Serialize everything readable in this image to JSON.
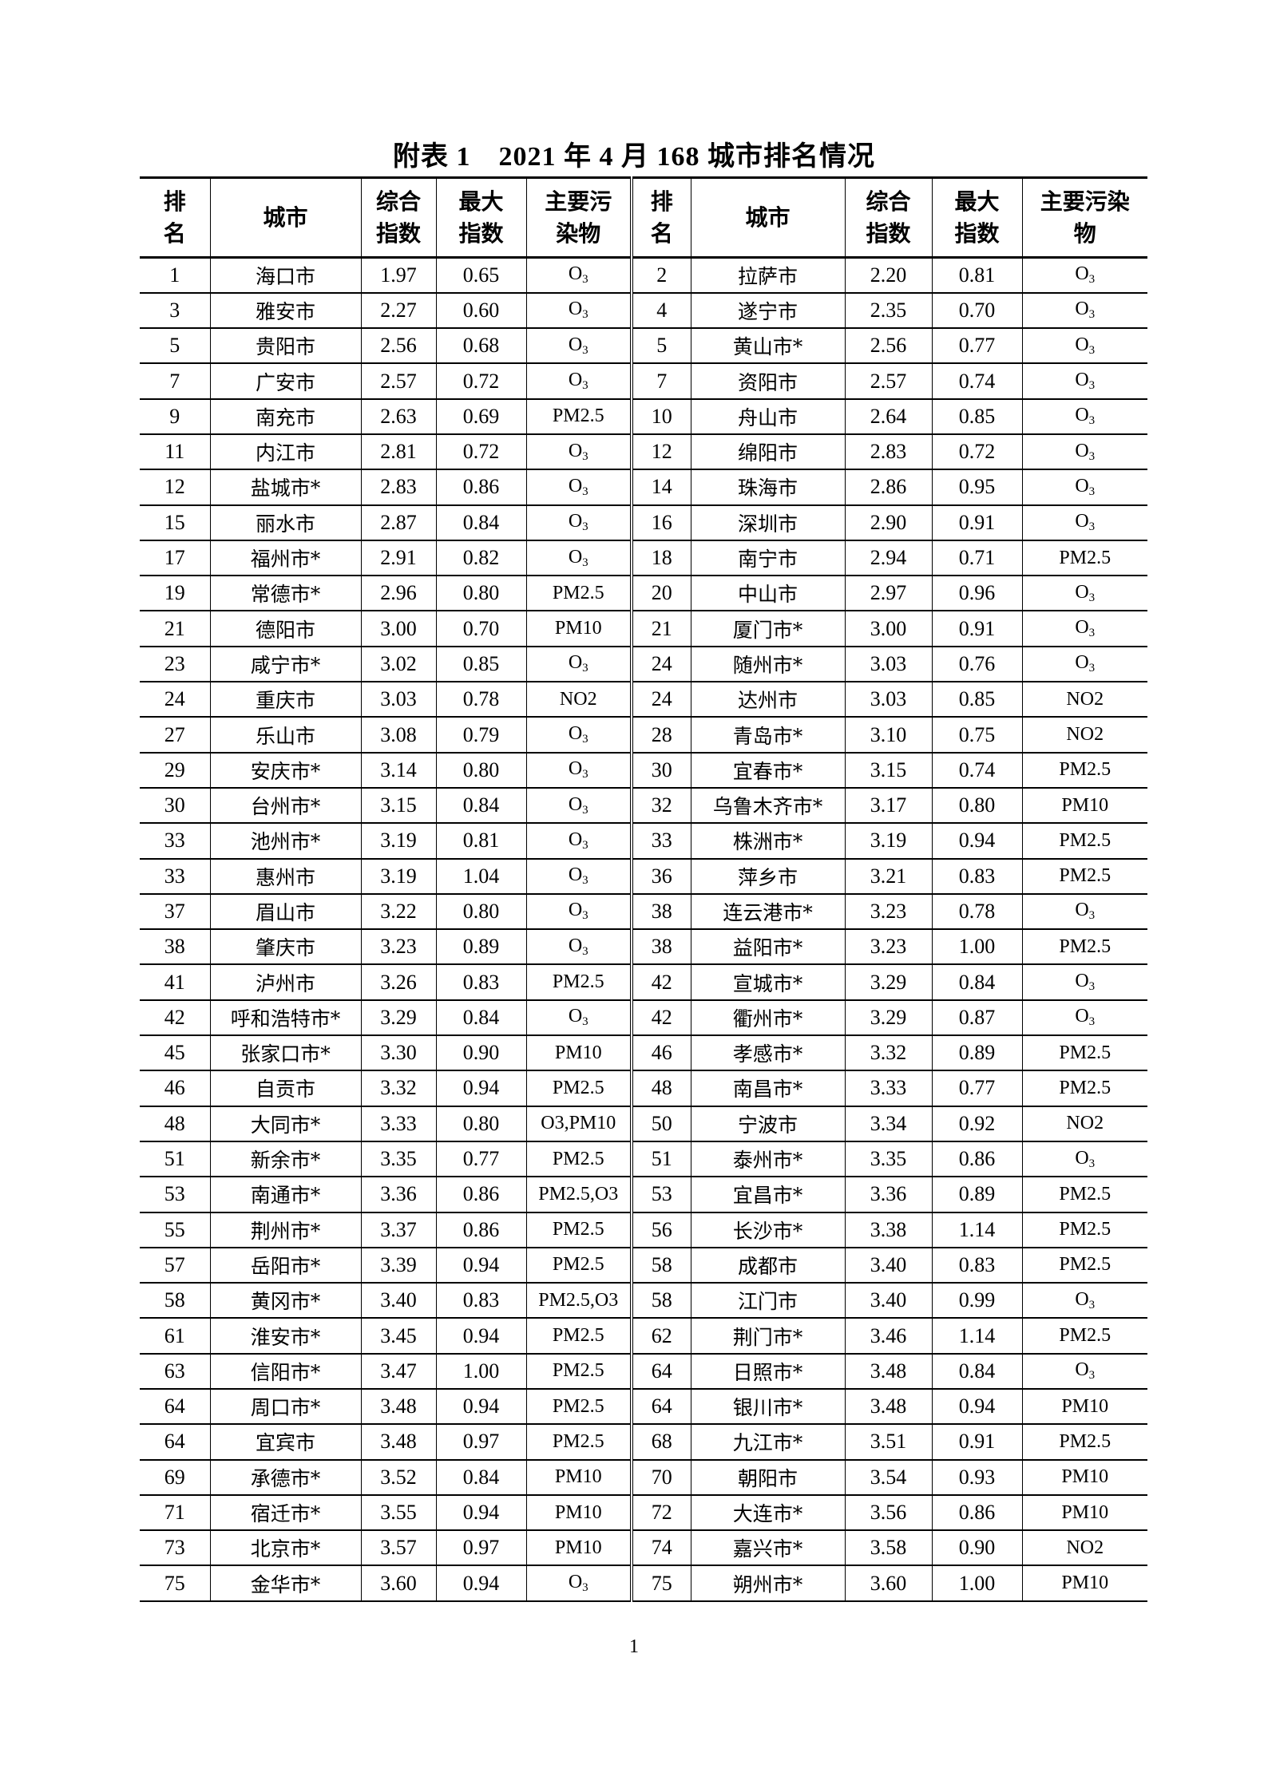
{
  "title": "附表 1　2021 年 4 月 168 城市排名情况",
  "headers": [
    "排\n名",
    "城市",
    "综合\n指数",
    "最大\n指数",
    "主要污\n染物",
    "排\n名",
    "城市",
    "综合\n指数",
    "最大\n指数",
    "主要污染\n物"
  ],
  "rows": [
    [
      [
        "1",
        "海口市",
        "1.97",
        "0.65",
        "O3"
      ],
      [
        "2",
        "拉萨市",
        "2.20",
        "0.81",
        "O3"
      ]
    ],
    [
      [
        "3",
        "雅安市",
        "2.27",
        "0.60",
        "O3"
      ],
      [
        "4",
        "遂宁市",
        "2.35",
        "0.70",
        "O3"
      ]
    ],
    [
      [
        "5",
        "贵阳市",
        "2.56",
        "0.68",
        "O3"
      ],
      [
        "5",
        "黄山市*",
        "2.56",
        "0.77",
        "O3"
      ]
    ],
    [
      [
        "7",
        "广安市",
        "2.57",
        "0.72",
        "O3"
      ],
      [
        "7",
        "资阳市",
        "2.57",
        "0.74",
        "O3"
      ]
    ],
    [
      [
        "9",
        "南充市",
        "2.63",
        "0.69",
        "PM2.5"
      ],
      [
        "10",
        "舟山市",
        "2.64",
        "0.85",
        "O3"
      ]
    ],
    [
      [
        "11",
        "内江市",
        "2.81",
        "0.72",
        "O3"
      ],
      [
        "12",
        "绵阳市",
        "2.83",
        "0.72",
        "O3"
      ]
    ],
    [
      [
        "12",
        "盐城市*",
        "2.83",
        "0.86",
        "O3"
      ],
      [
        "14",
        "珠海市",
        "2.86",
        "0.95",
        "O3"
      ]
    ],
    [
      [
        "15",
        "丽水市",
        "2.87",
        "0.84",
        "O3"
      ],
      [
        "16",
        "深圳市",
        "2.90",
        "0.91",
        "O3"
      ]
    ],
    [
      [
        "17",
        "福州市*",
        "2.91",
        "0.82",
        "O3"
      ],
      [
        "18",
        "南宁市",
        "2.94",
        "0.71",
        "PM2.5"
      ]
    ],
    [
      [
        "19",
        "常德市*",
        "2.96",
        "0.80",
        "PM2.5"
      ],
      [
        "20",
        "中山市",
        "2.97",
        "0.96",
        "O3"
      ]
    ],
    [
      [
        "21",
        "德阳市",
        "3.00",
        "0.70",
        "PM10"
      ],
      [
        "21",
        "厦门市*",
        "3.00",
        "0.91",
        "O3"
      ]
    ],
    [
      [
        "23",
        "咸宁市*",
        "3.02",
        "0.85",
        "O3"
      ],
      [
        "24",
        "随州市*",
        "3.03",
        "0.76",
        "O3"
      ]
    ],
    [
      [
        "24",
        "重庆市",
        "3.03",
        "0.78",
        "NO2"
      ],
      [
        "24",
        "达州市",
        "3.03",
        "0.85",
        "NO2"
      ]
    ],
    [
      [
        "27",
        "乐山市",
        "3.08",
        "0.79",
        "O3"
      ],
      [
        "28",
        "青岛市*",
        "3.10",
        "0.75",
        "NO2"
      ]
    ],
    [
      [
        "29",
        "安庆市*",
        "3.14",
        "0.80",
        "O3"
      ],
      [
        "30",
        "宜春市*",
        "3.15",
        "0.74",
        "PM2.5"
      ]
    ],
    [
      [
        "30",
        "台州市*",
        "3.15",
        "0.84",
        "O3"
      ],
      [
        "32",
        "乌鲁木齐市*",
        "3.17",
        "0.80",
        "PM10"
      ]
    ],
    [
      [
        "33",
        "池州市*",
        "3.19",
        "0.81",
        "O3"
      ],
      [
        "33",
        "株洲市*",
        "3.19",
        "0.94",
        "PM2.5"
      ]
    ],
    [
      [
        "33",
        "惠州市",
        "3.19",
        "1.04",
        "O3"
      ],
      [
        "36",
        "萍乡市",
        "3.21",
        "0.83",
        "PM2.5"
      ]
    ],
    [
      [
        "37",
        "眉山市",
        "3.22",
        "0.80",
        "O3"
      ],
      [
        "38",
        "连云港市*",
        "3.23",
        "0.78",
        "O3"
      ]
    ],
    [
      [
        "38",
        "肇庆市",
        "3.23",
        "0.89",
        "O3"
      ],
      [
        "38",
        "益阳市*",
        "3.23",
        "1.00",
        "PM2.5"
      ]
    ],
    [
      [
        "41",
        "泸州市",
        "3.26",
        "0.83",
        "PM2.5"
      ],
      [
        "42",
        "宣城市*",
        "3.29",
        "0.84",
        "O3"
      ]
    ],
    [
      [
        "42",
        "呼和浩特市*",
        "3.29",
        "0.84",
        "O3"
      ],
      [
        "42",
        "衢州市*",
        "3.29",
        "0.87",
        "O3"
      ]
    ],
    [
      [
        "45",
        "张家口市*",
        "3.30",
        "0.90",
        "PM10"
      ],
      [
        "46",
        "孝感市*",
        "3.32",
        "0.89",
        "PM2.5"
      ]
    ],
    [
      [
        "46",
        "自贡市",
        "3.32",
        "0.94",
        "PM2.5"
      ],
      [
        "48",
        "南昌市*",
        "3.33",
        "0.77",
        "PM2.5"
      ]
    ],
    [
      [
        "48",
        "大同市*",
        "3.33",
        "0.80",
        "O3,PM10"
      ],
      [
        "50",
        "宁波市",
        "3.34",
        "0.92",
        "NO2"
      ]
    ],
    [
      [
        "51",
        "新余市*",
        "3.35",
        "0.77",
        "PM2.5"
      ],
      [
        "51",
        "泰州市*",
        "3.35",
        "0.86",
        "O3"
      ]
    ],
    [
      [
        "53",
        "南通市*",
        "3.36",
        "0.86",
        "PM2.5,O3"
      ],
      [
        "53",
        "宜昌市*",
        "3.36",
        "0.89",
        "PM2.5"
      ]
    ],
    [
      [
        "55",
        "荆州市*",
        "3.37",
        "0.86",
        "PM2.5"
      ],
      [
        "56",
        "长沙市*",
        "3.38",
        "1.14",
        "PM2.5"
      ]
    ],
    [
      [
        "57",
        "岳阳市*",
        "3.39",
        "0.94",
        "PM2.5"
      ],
      [
        "58",
        "成都市",
        "3.40",
        "0.83",
        "PM2.5"
      ]
    ],
    [
      [
        "58",
        "黄冈市*",
        "3.40",
        "0.83",
        "PM2.5,O3"
      ],
      [
        "58",
        "江门市",
        "3.40",
        "0.99",
        "O3"
      ]
    ],
    [
      [
        "61",
        "淮安市*",
        "3.45",
        "0.94",
        "PM2.5"
      ],
      [
        "62",
        "荆门市*",
        "3.46",
        "1.14",
        "PM2.5"
      ]
    ],
    [
      [
        "63",
        "信阳市*",
        "3.47",
        "1.00",
        "PM2.5"
      ],
      [
        "64",
        "日照市*",
        "3.48",
        "0.84",
        "O3"
      ]
    ],
    [
      [
        "64",
        "周口市*",
        "3.48",
        "0.94",
        "PM2.5"
      ],
      [
        "64",
        "银川市*",
        "3.48",
        "0.94",
        "PM10"
      ]
    ],
    [
      [
        "64",
        "宜宾市",
        "3.48",
        "0.97",
        "PM2.5"
      ],
      [
        "68",
        "九江市*",
        "3.51",
        "0.91",
        "PM2.5"
      ]
    ],
    [
      [
        "69",
        "承德市*",
        "3.52",
        "0.84",
        "PM10"
      ],
      [
        "70",
        "朝阳市",
        "3.54",
        "0.93",
        "PM10"
      ]
    ],
    [
      [
        "71",
        "宿迁市*",
        "3.55",
        "0.94",
        "PM10"
      ],
      [
        "72",
        "大连市*",
        "3.56",
        "0.86",
        "PM10"
      ]
    ],
    [
      [
        "73",
        "北京市*",
        "3.57",
        "0.97",
        "PM10"
      ],
      [
        "74",
        "嘉兴市*",
        "3.58",
        "0.90",
        "NO2"
      ]
    ],
    [
      [
        "75",
        "金华市*",
        "3.60",
        "0.94",
        "O3"
      ],
      [
        "75",
        "朔州市*",
        "3.60",
        "1.00",
        "PM10"
      ]
    ]
  ],
  "page_number": "1"
}
